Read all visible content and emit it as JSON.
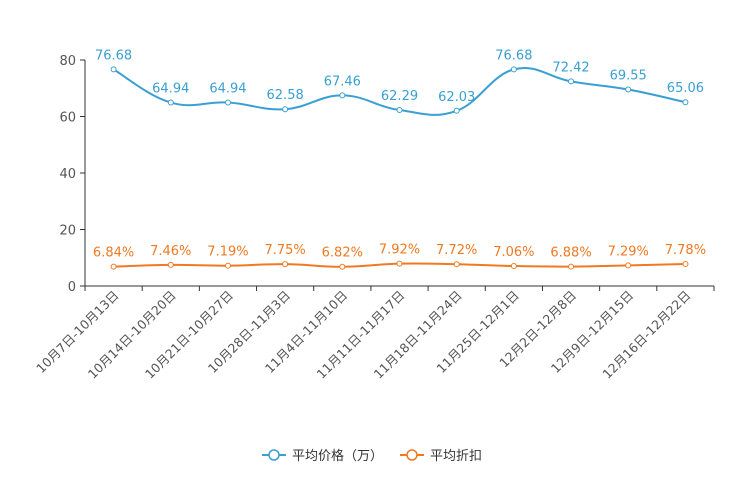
{
  "chart_data": {
    "type": "line",
    "categories": [
      "10月7日-10月13日",
      "10月14日-10月20日",
      "10月21日-10月27日",
      "10月28日-11月3日",
      "11月4日-11月10日",
      "11月11日-11月17日",
      "11月18日-11月24日",
      "11月25日-12月1日",
      "12月2日-12月8日",
      "12月9日-12月15日",
      "12月16日-12月22日"
    ],
    "ylim": [
      0,
      80
    ],
    "yticks": [
      0,
      20,
      40,
      60,
      80
    ],
    "series": [
      {
        "name": "平均价格（万）",
        "color": "#3a9fd2",
        "values": [
          76.68,
          64.94,
          64.94,
          62.58,
          67.46,
          62.29,
          62.03,
          76.68,
          72.42,
          69.55,
          65.06
        ],
        "labels": [
          "76.68",
          "64.94",
          "64.94",
          "62.58",
          "67.46",
          "62.29",
          "62.03",
          "76.68",
          "72.42",
          "69.55",
          "65.06"
        ]
      },
      {
        "name": "平均折扣",
        "color": "#f07922",
        "values": [
          6.84,
          7.46,
          7.19,
          7.75,
          6.82,
          7.92,
          7.72,
          7.06,
          6.88,
          7.29,
          7.78
        ],
        "labels": [
          "6.84%",
          "7.46%",
          "7.19%",
          "7.75%",
          "6.82%",
          "7.92%",
          "7.72%",
          "7.06%",
          "6.88%",
          "7.29%",
          "7.78%"
        ]
      }
    ]
  }
}
